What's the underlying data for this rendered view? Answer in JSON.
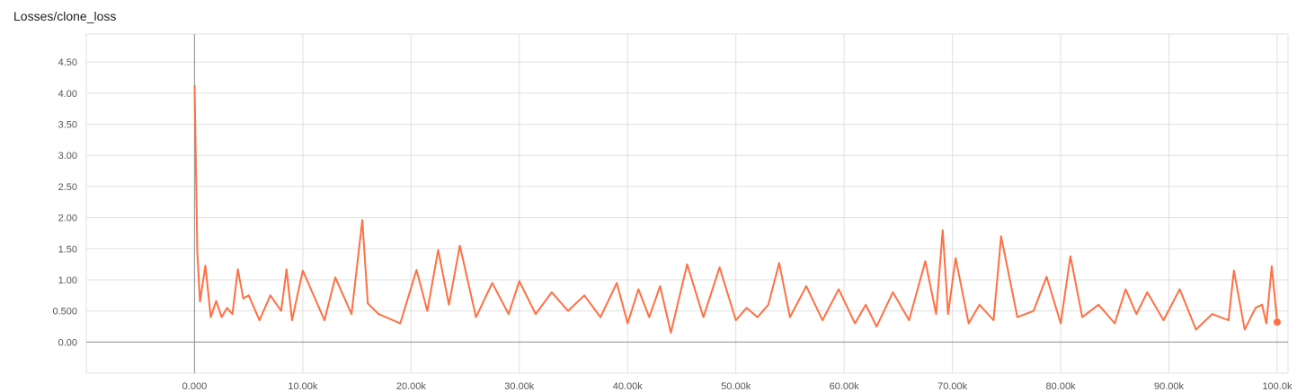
{
  "chart_data": {
    "type": "line",
    "title": "Losses/clone_loss",
    "xlabel": "",
    "ylabel": "",
    "xlim": [
      -10000,
      101000
    ],
    "ylim": [
      -0.5,
      4.95
    ],
    "x_ticks": [
      0,
      10000,
      20000,
      30000,
      40000,
      50000,
      60000,
      70000,
      80000,
      90000,
      100000
    ],
    "x_tick_labels": [
      "0.000",
      "10.00k",
      "20.00k",
      "30.00k",
      "40.00k",
      "50.00k",
      "60.00k",
      "70.00k",
      "80.00k",
      "90.00k",
      "100.0k"
    ],
    "y_ticks": [
      0,
      0.5,
      1.0,
      1.5,
      2.0,
      2.5,
      3.0,
      3.5,
      4.0,
      4.5
    ],
    "y_tick_labels": [
      "0.00",
      "0.500",
      "1.00",
      "1.50",
      "2.00",
      "2.50",
      "3.00",
      "3.50",
      "4.00",
      "4.50"
    ],
    "grid": true,
    "line_color": "#ff7043",
    "series": [
      {
        "x": [
          0,
          250,
          500,
          1000,
          1500,
          2000,
          2500,
          3000,
          3500,
          4000,
          4500,
          5000,
          6000,
          7000,
          8000,
          8500,
          9000,
          10000,
          12000,
          13000,
          14500,
          15500,
          16000,
          17000,
          19000,
          20500,
          21500,
          22500,
          23500,
          24500,
          26000,
          27500,
          29000,
          30000,
          31500,
          33000,
          34500,
          36000,
          37500,
          39000,
          40000,
          41000,
          42000,
          43000,
          44000,
          45500,
          47000,
          48500,
          50000,
          51000,
          52000,
          53000,
          54000,
          55000,
          56500,
          58000,
          59500,
          61000,
          62000,
          63000,
          64500,
          66000,
          67500,
          68500,
          69100,
          69600,
          70300,
          71500,
          72500,
          73800,
          74500,
          76000,
          77500,
          78700,
          80000,
          80900,
          82000,
          83500,
          85000,
          86000,
          87000,
          88000,
          89500,
          91000,
          92500,
          94000,
          95500,
          96000,
          97000,
          98000,
          98600,
          99000,
          99500,
          100000
        ],
        "y": [
          4.13,
          1.45,
          0.65,
          1.23,
          0.4,
          0.66,
          0.4,
          0.55,
          0.45,
          1.17,
          0.7,
          0.75,
          0.35,
          0.75,
          0.5,
          1.17,
          0.35,
          1.15,
          0.35,
          1.04,
          0.45,
          1.96,
          0.62,
          0.45,
          0.3,
          1.16,
          0.5,
          1.48,
          0.6,
          1.55,
          0.4,
          0.95,
          0.45,
          0.98,
          0.45,
          0.8,
          0.5,
          0.75,
          0.4,
          0.95,
          0.3,
          0.85,
          0.4,
          0.9,
          0.15,
          1.25,
          0.4,
          1.2,
          0.35,
          0.55,
          0.4,
          0.6,
          1.27,
          0.4,
          0.9,
          0.35,
          0.85,
          0.3,
          0.6,
          0.25,
          0.8,
          0.35,
          1.3,
          0.45,
          1.8,
          0.45,
          1.35,
          0.3,
          0.6,
          0.35,
          1.7,
          0.4,
          0.5,
          1.05,
          0.3,
          1.38,
          0.4,
          0.6,
          0.3,
          0.85,
          0.45,
          0.8,
          0.35,
          0.85,
          0.2,
          0.45,
          0.35,
          1.15,
          0.2,
          0.55,
          0.6,
          0.3,
          1.22,
          0.32
        ]
      }
    ]
  }
}
